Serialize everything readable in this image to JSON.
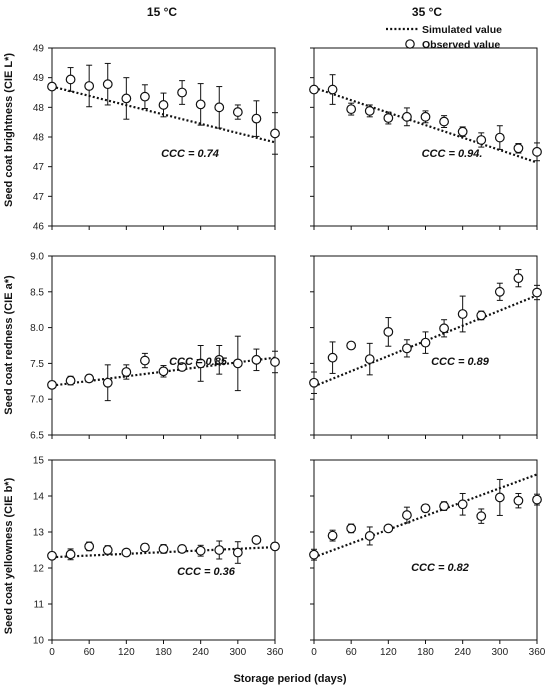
{
  "figure": {
    "column_titles": [
      "15 °C",
      "35 °C"
    ],
    "xlabel": "Storage period (days)",
    "row_ylabels": [
      "Seed coat brightness (CIE L*)",
      "Seed coat redness (CIE a*)",
      "Seed coat yellowness (CIE b*)"
    ],
    "legend": {
      "simulated": "Simulated value",
      "observed": "Observed value",
      "placement": "top-right"
    }
  },
  "chart_data": [
    {
      "id": "brightness-15",
      "type": "scatter",
      "xlim": [
        0,
        360
      ],
      "ylim": [
        46,
        49
      ],
      "xticks": [
        0,
        60,
        120,
        180,
        240,
        300,
        360
      ],
      "ytick_labels": [
        "46",
        "47",
        "47",
        "48",
        "48",
        "49",
        "49"
      ],
      "ytick_values": [
        46,
        46.5,
        47,
        47.5,
        48,
        48.5,
        49
      ],
      "x": [
        0,
        30,
        60,
        90,
        120,
        150,
        180,
        210,
        240,
        270,
        300,
        330,
        360
      ],
      "observed": [
        48.35,
        48.47,
        48.36,
        48.39,
        48.15,
        48.18,
        48.04,
        48.25,
        48.05,
        48.0,
        47.92,
        47.81,
        47.56
      ],
      "error": [
        0.0,
        0.2,
        0.35,
        0.35,
        0.35,
        0.2,
        0.2,
        0.2,
        0.35,
        0.35,
        0.12,
        0.3,
        0.35
      ],
      "simulated": {
        "x": [
          0,
          360
        ],
        "y": [
          48.35,
          47.41
        ]
      },
      "annotation": "CCC = 0.74"
    },
    {
      "id": "brightness-35",
      "type": "scatter",
      "xlim": [
        0,
        360
      ],
      "ylim": [
        46,
        49
      ],
      "xticks": [
        0,
        60,
        120,
        180,
        240,
        300,
        360
      ],
      "x": [
        0,
        30,
        60,
        90,
        120,
        150,
        180,
        210,
        240,
        270,
        300,
        330,
        360
      ],
      "observed": [
        48.3,
        48.3,
        47.97,
        47.94,
        47.82,
        47.84,
        47.84,
        47.76,
        47.59,
        47.45,
        47.49,
        47.31,
        47.25
      ],
      "error": [
        0.0,
        0.25,
        0.1,
        0.1,
        0.1,
        0.15,
        0.1,
        0.1,
        0.08,
        0.12,
        0.2,
        0.08,
        0.15
      ],
      "simulated": {
        "x": [
          0,
          360
        ],
        "y": [
          48.33,
          47.07
        ]
      },
      "annotation": "CCC = 0.94."
    },
    {
      "id": "redness-15",
      "type": "scatter",
      "xlim": [
        0,
        360
      ],
      "ylim": [
        6.5,
        9.0
      ],
      "xticks": [
        0,
        60,
        120,
        180,
        240,
        300,
        360
      ],
      "ytick_labels": [
        "6.5",
        "7.0",
        "7.5",
        "8.0",
        "8.5",
        "9.0"
      ],
      "ytick_values": [
        6.5,
        7.0,
        7.5,
        8.0,
        8.5,
        9.0
      ],
      "x": [
        0,
        30,
        60,
        90,
        120,
        150,
        180,
        210,
        240,
        270,
        300,
        330,
        360
      ],
      "observed": [
        7.2,
        7.26,
        7.29,
        7.23,
        7.38,
        7.54,
        7.39,
        7.45,
        7.5,
        7.55,
        7.5,
        7.55,
        7.52
      ],
      "error": [
        0.05,
        0.06,
        0.05,
        0.25,
        0.1,
        0.1,
        0.08,
        0.05,
        0.25,
        0.2,
        0.38,
        0.15,
        0.15
      ],
      "simulated": {
        "x": [
          0,
          360
        ],
        "y": [
          7.19,
          7.58
        ]
      },
      "annotation": "CCC = 0.85"
    },
    {
      "id": "redness-35",
      "type": "scatter",
      "xlim": [
        0,
        360
      ],
      "ylim": [
        6.5,
        9.0
      ],
      "xticks": [
        0,
        60,
        120,
        180,
        240,
        300,
        360
      ],
      "x": [
        0,
        30,
        60,
        90,
        120,
        150,
        180,
        210,
        240,
        270,
        300,
        330,
        360
      ],
      "observed": [
        7.23,
        7.58,
        7.75,
        7.56,
        7.94,
        7.71,
        7.79,
        7.99,
        8.19,
        8.17,
        8.5,
        8.69,
        8.49
      ],
      "error": [
        0.15,
        0.22,
        0.04,
        0.22,
        0.2,
        0.12,
        0.15,
        0.12,
        0.25,
        0.06,
        0.12,
        0.12,
        0.1
      ],
      "simulated": {
        "x": [
          0,
          360
        ],
        "y": [
          7.18,
          8.45
        ]
      },
      "annotation": "CCC = 0.89"
    },
    {
      "id": "yellowness-15",
      "type": "scatter",
      "xlim": [
        0,
        360
      ],
      "ylim": [
        10,
        15
      ],
      "xticks": [
        0,
        60,
        120,
        180,
        240,
        300,
        360
      ],
      "ytick_labels": [
        "10",
        "11",
        "12",
        "13",
        "14",
        "15"
      ],
      "ytick_values": [
        10,
        11,
        12,
        13,
        14,
        15
      ],
      "x": [
        0,
        30,
        60,
        90,
        120,
        150,
        180,
        210,
        240,
        270,
        300,
        330,
        360
      ],
      "observed": [
        12.34,
        12.38,
        12.6,
        12.5,
        12.43,
        12.57,
        12.53,
        12.53,
        12.48,
        12.5,
        12.43,
        12.78,
        12.6
      ],
      "error": [
        0.1,
        0.15,
        0.12,
        0.12,
        0.08,
        0.1,
        0.12,
        0.1,
        0.15,
        0.25,
        0.3,
        0.08,
        0.1
      ],
      "simulated": {
        "x": [
          0,
          360
        ],
        "y": [
          12.3,
          12.58
        ]
      },
      "annotation": "CCC = 0.36"
    },
    {
      "id": "yellowness-35",
      "type": "scatter",
      "xlim": [
        0,
        360
      ],
      "ylim": [
        10,
        15
      ],
      "xticks": [
        0,
        60,
        120,
        180,
        240,
        300,
        360
      ],
      "x": [
        0,
        30,
        60,
        90,
        120,
        150,
        180,
        210,
        240,
        270,
        300,
        330,
        360
      ],
      "observed": [
        12.37,
        12.9,
        13.1,
        12.89,
        13.1,
        13.47,
        13.66,
        13.72,
        13.77,
        13.44,
        13.96,
        13.87,
        13.9
      ],
      "error": [
        0.15,
        0.15,
        0.12,
        0.25,
        0.08,
        0.22,
        0.1,
        0.12,
        0.3,
        0.2,
        0.5,
        0.2,
        0.15
      ],
      "simulated": {
        "x": [
          0,
          360
        ],
        "y": [
          12.3,
          14.6
        ]
      },
      "annotation": "CCC  = 0.82"
    }
  ]
}
